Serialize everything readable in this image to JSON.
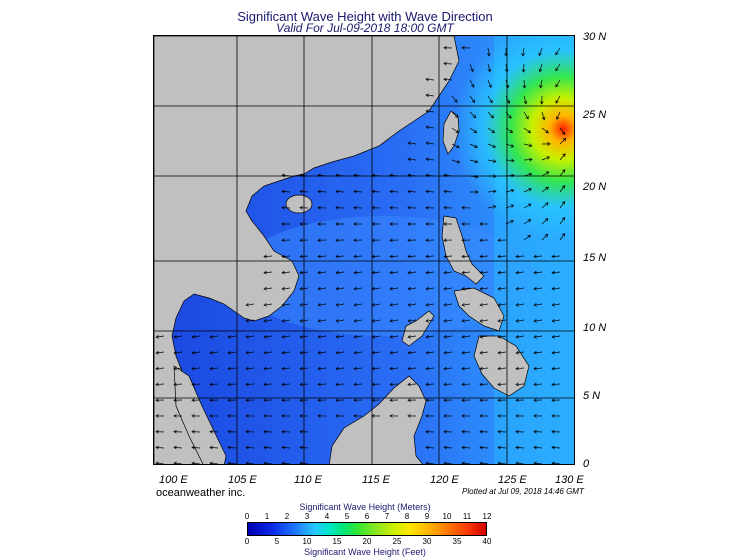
{
  "title": "Significant Wave Height with Wave Direction",
  "subtitle": "Valid For Jul-09-2018 18:00 GMT",
  "lat_labels": [
    "30 N",
    "25 N",
    "20 N",
    "15 N",
    "10 N",
    "5 N",
    "0"
  ],
  "lon_labels": [
    "100 E",
    "105 E",
    "110 E",
    "115 E",
    "120 E",
    "125 E",
    "130 E"
  ],
  "credit": "oceanweather inc.",
  "plotted": "Plotted at Jul 09, 2018 14:46 GMT",
  "legend": {
    "meters_title": "Significant Wave Height (Meters)",
    "feet_title": "Significant Wave Height (Feet)",
    "meters_ticks": [
      "0",
      "1",
      "2",
      "3",
      "4",
      "5",
      "6",
      "7",
      "8",
      "9",
      "10",
      "11",
      "12"
    ],
    "feet_ticks": [
      "0",
      "5",
      "10",
      "15",
      "20",
      "25",
      "30",
      "35",
      "40"
    ]
  },
  "colors": {
    "land": "#c0c0c0",
    "sea_low": "#1e50e6",
    "sea_mid": "#28a0ff",
    "peak": "#ff3c00",
    "arrow": "#000000"
  }
}
